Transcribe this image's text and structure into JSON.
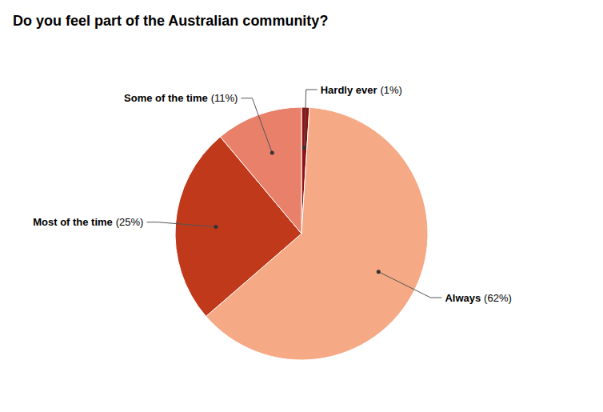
{
  "chart_data": {
    "type": "pie",
    "title": "Do you feel part of the Australian community?",
    "categories": [
      "Hardly ever",
      "Always",
      "Most of the time",
      "Some of the time"
    ],
    "values": [
      1,
      62,
      25,
      11
    ],
    "value_labels": [
      "(1%)",
      "(62%)",
      "(25%)",
      "(11%)"
    ],
    "colors": [
      "#8B1515",
      "#F5A984",
      "#C0391B",
      "#E8806A"
    ],
    "data_labels": true
  }
}
